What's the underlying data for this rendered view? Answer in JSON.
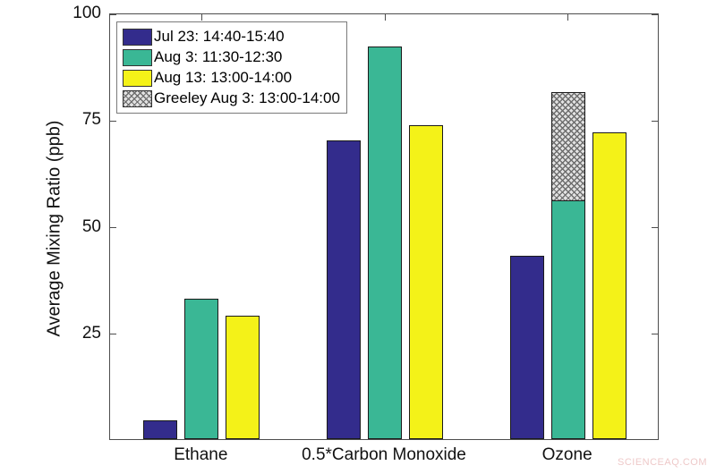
{
  "watermark": "SCIENCEAQ.COM",
  "chart_data": {
    "type": "bar",
    "title": "",
    "xlabel": "",
    "ylabel": "Average Mixing Ratio (ppb)",
    "ylim": [
      0,
      100
    ],
    "yticks": [
      25,
      50,
      75,
      100
    ],
    "grid": false,
    "legend_position": "top-left",
    "axis_color": "#4d4d4d",
    "edge_color": "#1a1a1a",
    "hatch_bg": "#e2e2e2",
    "hatch_line": "#6e6e6e",
    "categories": [
      "Ethane",
      "0.5*Carbon Monoxide",
      "Ozone"
    ],
    "series": [
      {
        "name": "Jul 23: 14:40-15:40",
        "color": "#332C8C",
        "values": [
          4.5,
          70,
          43
        ]
      },
      {
        "name": "Aug 3: 11:30-12:30",
        "color": "#3AB795",
        "values": [
          33,
          92,
          56
        ]
      },
      {
        "name": "Aug 13: 13:00-14:00",
        "color": "#F4F218",
        "values": [
          29,
          73.5,
          72
        ]
      },
      {
        "name": "Greeley Aug 3: 13:00-14:00",
        "color": "hatch",
        "stacked_on_series": 1,
        "values": [
          0,
          0,
          25.5
        ]
      }
    ]
  }
}
